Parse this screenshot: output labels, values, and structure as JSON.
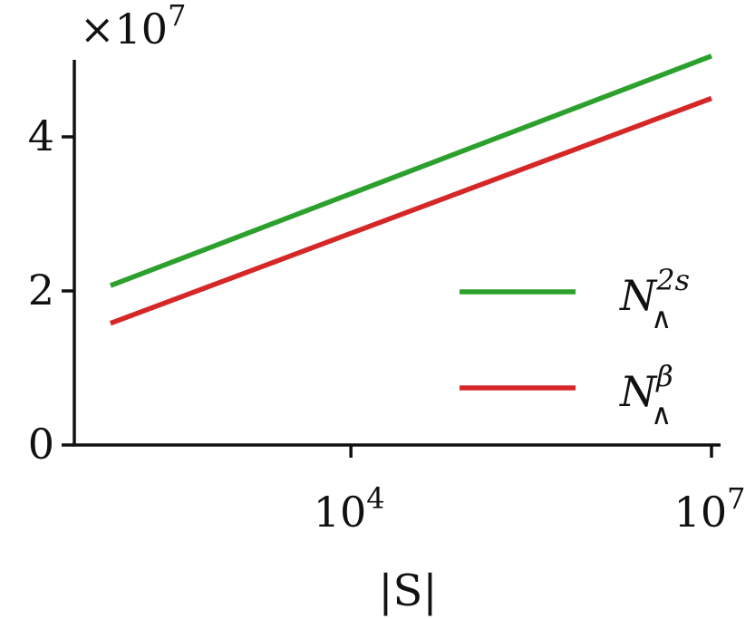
{
  "chart_data": {
    "type": "line",
    "title": "",
    "xlabel": "|S|",
    "ylabel": "",
    "x_scale": "log",
    "xlim": [
      50,
      10000000
    ],
    "ylim": [
      0,
      5.0
    ],
    "y_multiplier_label": "×10",
    "y_multiplier_exponent": "7",
    "x_ticks": [
      {
        "value": 10000,
        "base": "10",
        "exponent": "4"
      },
      {
        "value": 10000000,
        "base": "10",
        "exponent": "7"
      }
    ],
    "y_ticks": [
      {
        "value": 0,
        "label": "0"
      },
      {
        "value": 2,
        "label": "2"
      },
      {
        "value": 4,
        "label": "4"
      }
    ],
    "grid": false,
    "legend_position": "lower-right",
    "series": [
      {
        "name": "N",
        "name_superscript": "2s",
        "name_subscript": "∧",
        "color": "#2ca02c",
        "x": [
          100,
          10000000
        ],
        "y": [
          2.07,
          5.05
        ]
      },
      {
        "name": "N",
        "name_superscript": "β",
        "name_subscript": "∧",
        "color": "#d62728",
        "x": [
          100,
          10000000
        ],
        "y": [
          1.58,
          4.5
        ]
      }
    ]
  }
}
